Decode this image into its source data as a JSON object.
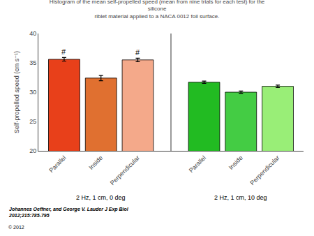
{
  "chart_data": {
    "type": "bar",
    "title": "Histogram of the mean self-propelled speed (mean from nine trials for each test) for the silicone\nriblet material applied to a NACA 0012 foil surface.",
    "ylabel": "Self-propelled speed (cm s⁻¹)",
    "ylim": [
      20,
      40
    ],
    "yticks": [
      20,
      25,
      30,
      35,
      40
    ],
    "grid": false,
    "groups": [
      {
        "label": "2 Hz, 1 cm, 0 deg",
        "categories": [
          "Parallel",
          "Inside",
          "Perpendicular"
        ],
        "values": [
          35.6,
          32.4,
          35.5
        ],
        "errors": [
          0.3,
          0.45,
          0.3
        ],
        "colors": [
          "#E8401A",
          "#E07030",
          "#F4A98A"
        ],
        "notes": [
          "#",
          null,
          "#"
        ]
      },
      {
        "label": "2 Hz, 1 cm, 10 deg",
        "categories": [
          "Parallel",
          "Inside",
          "Perpendicular"
        ],
        "values": [
          31.7,
          30.0,
          31.0
        ],
        "errors": [
          0.2,
          0.2,
          0.2
        ],
        "colors": [
          "#22BB22",
          "#44CC44",
          "#99EE77"
        ],
        "notes": [
          null,
          null,
          null
        ]
      }
    ],
    "annotations": [
      "Johannes Oeffner, and George V. Lauder J Exp Biol\n2012;215:785-795",
      "© 2012"
    ]
  }
}
